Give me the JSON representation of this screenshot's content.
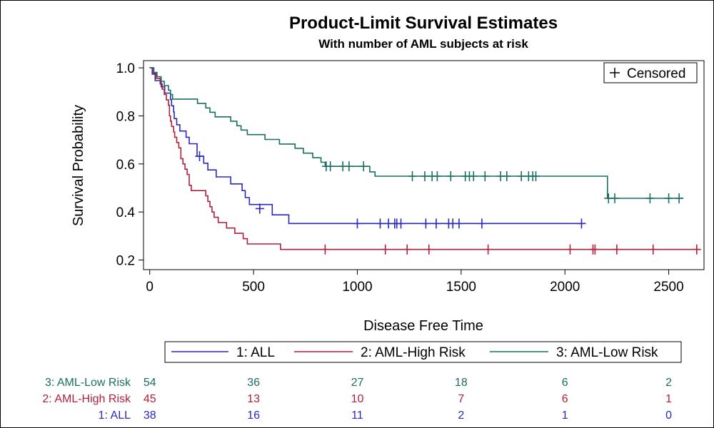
{
  "chart_data": {
    "type": "line",
    "title": "Product-Limit Survival Estimates",
    "subtitle": "With number of AML subjects at risk",
    "xlabel": "Disease Free Time",
    "ylabel": "Survival Probability",
    "xlim": [
      -30,
      2670
    ],
    "ylim": [
      0.16,
      1.03
    ],
    "xticks": [
      0,
      500,
      1000,
      1500,
      2000,
      2500
    ],
    "xtick_labels": [
      "0",
      "500",
      "1000",
      "1500",
      "2000",
      "2500"
    ],
    "yticks": [
      0.2,
      0.4,
      0.6,
      0.8,
      1.0
    ],
    "ytick_labels": [
      "0.2",
      "0.4",
      "0.6",
      "0.8",
      "1.0"
    ],
    "censor_legend": "Censored",
    "legend_position": "bottom",
    "series": [
      {
        "name": "1: ALL",
        "color": "#2a2ab8",
        "steps": [
          [
            0,
            1.0
          ],
          [
            12,
            0.974
          ],
          [
            26,
            0.947
          ],
          [
            55,
            0.921
          ],
          [
            72,
            0.895
          ],
          [
            100,
            0.868
          ],
          [
            105,
            0.842
          ],
          [
            115,
            0.816
          ],
          [
            118,
            0.789
          ],
          [
            130,
            0.763
          ],
          [
            145,
            0.737
          ],
          [
            175,
            0.711
          ],
          [
            190,
            0.684
          ],
          [
            228,
            0.632
          ],
          [
            260,
            0.603
          ],
          [
            280,
            0.575
          ],
          [
            320,
            0.546
          ],
          [
            390,
            0.517
          ],
          [
            445,
            0.489
          ],
          [
            460,
            0.46
          ],
          [
            480,
            0.431
          ],
          [
            590,
            0.388
          ],
          [
            670,
            0.352
          ],
          [
            2090,
            0.352
          ]
        ],
        "censored": [
          [
            240,
            0.632
          ],
          [
            530,
            0.414
          ],
          [
            1000,
            0.352
          ],
          [
            1110,
            0.352
          ],
          [
            1150,
            0.352
          ],
          [
            1180,
            0.352
          ],
          [
            1190,
            0.352
          ],
          [
            1210,
            0.352
          ],
          [
            1330,
            0.352
          ],
          [
            1380,
            0.352
          ],
          [
            1440,
            0.352
          ],
          [
            1460,
            0.352
          ],
          [
            1490,
            0.352
          ],
          [
            1600,
            0.352
          ],
          [
            2080,
            0.352
          ]
        ]
      },
      {
        "name": "2: AML-High Risk",
        "color": "#b0203a",
        "steps": [
          [
            0,
            1.0
          ],
          [
            15,
            0.978
          ],
          [
            30,
            0.956
          ],
          [
            50,
            0.933
          ],
          [
            60,
            0.911
          ],
          [
            70,
            0.889
          ],
          [
            80,
            0.867
          ],
          [
            90,
            0.844
          ],
          [
            95,
            0.8
          ],
          [
            100,
            0.778
          ],
          [
            105,
            0.756
          ],
          [
            115,
            0.733
          ],
          [
            120,
            0.711
          ],
          [
            130,
            0.689
          ],
          [
            140,
            0.667
          ],
          [
            150,
            0.622
          ],
          [
            160,
            0.6
          ],
          [
            170,
            0.578
          ],
          [
            180,
            0.556
          ],
          [
            190,
            0.511
          ],
          [
            200,
            0.489
          ],
          [
            270,
            0.467
          ],
          [
            280,
            0.444
          ],
          [
            290,
            0.422
          ],
          [
            300,
            0.4
          ],
          [
            310,
            0.378
          ],
          [
            330,
            0.356
          ],
          [
            370,
            0.333
          ],
          [
            410,
            0.311
          ],
          [
            450,
            0.289
          ],
          [
            470,
            0.267
          ],
          [
            560,
            0.267
          ],
          [
            630,
            0.244
          ],
          [
            2650,
            0.244
          ]
        ],
        "censored": [
          [
            845,
            0.244
          ],
          [
            1135,
            0.244
          ],
          [
            1240,
            0.244
          ],
          [
            1345,
            0.244
          ],
          [
            1630,
            0.244
          ],
          [
            2025,
            0.244
          ],
          [
            2135,
            0.244
          ],
          [
            2145,
            0.244
          ],
          [
            2250,
            0.244
          ],
          [
            2425,
            0.244
          ],
          [
            2635,
            0.244
          ]
        ]
      },
      {
        "name": "3: AML-Low Risk",
        "color": "#1a6e62",
        "steps": [
          [
            0,
            1.0
          ],
          [
            20,
            0.981
          ],
          [
            35,
            0.963
          ],
          [
            55,
            0.944
          ],
          [
            70,
            0.926
          ],
          [
            90,
            0.907
          ],
          [
            100,
            0.889
          ],
          [
            110,
            0.87
          ],
          [
            230,
            0.852
          ],
          [
            270,
            0.833
          ],
          [
            290,
            0.815
          ],
          [
            315,
            0.796
          ],
          [
            390,
            0.778
          ],
          [
            420,
            0.759
          ],
          [
            440,
            0.741
          ],
          [
            470,
            0.722
          ],
          [
            555,
            0.702
          ],
          [
            625,
            0.683
          ],
          [
            700,
            0.665
          ],
          [
            740,
            0.645
          ],
          [
            785,
            0.626
          ],
          [
            825,
            0.607
          ],
          [
            845,
            0.59
          ],
          [
            1060,
            0.567
          ],
          [
            1085,
            0.549
          ],
          [
            2205,
            0.457
          ],
          [
            2570,
            0.457
          ]
        ],
        "censored": [
          [
            850,
            0.59
          ],
          [
            870,
            0.59
          ],
          [
            930,
            0.59
          ],
          [
            960,
            0.59
          ],
          [
            1030,
            0.59
          ],
          [
            1265,
            0.549
          ],
          [
            1325,
            0.549
          ],
          [
            1360,
            0.549
          ],
          [
            1385,
            0.549
          ],
          [
            1450,
            0.549
          ],
          [
            1520,
            0.549
          ],
          [
            1540,
            0.549
          ],
          [
            1560,
            0.549
          ],
          [
            1615,
            0.549
          ],
          [
            1690,
            0.549
          ],
          [
            1720,
            0.549
          ],
          [
            1790,
            0.549
          ],
          [
            1825,
            0.549
          ],
          [
            1845,
            0.549
          ],
          [
            1860,
            0.549
          ],
          [
            2210,
            0.457
          ],
          [
            2240,
            0.457
          ],
          [
            2410,
            0.457
          ],
          [
            2500,
            0.457
          ],
          [
            2550,
            0.457
          ]
        ]
      }
    ],
    "at_risk": {
      "times": [
        0,
        500,
        1000,
        1500,
        2000,
        2500
      ],
      "rows": [
        {
          "label": "3: AML-Low Risk",
          "color": "#1a6e62",
          "values": [
            54,
            36,
            27,
            18,
            6,
            2
          ]
        },
        {
          "label": "2: AML-High Risk",
          "color": "#b0203a",
          "values": [
            45,
            13,
            10,
            7,
            6,
            1
          ]
        },
        {
          "label": "1: ALL",
          "color": "#2a2ab8",
          "values": [
            38,
            16,
            11,
            2,
            1,
            0
          ]
        }
      ]
    }
  }
}
